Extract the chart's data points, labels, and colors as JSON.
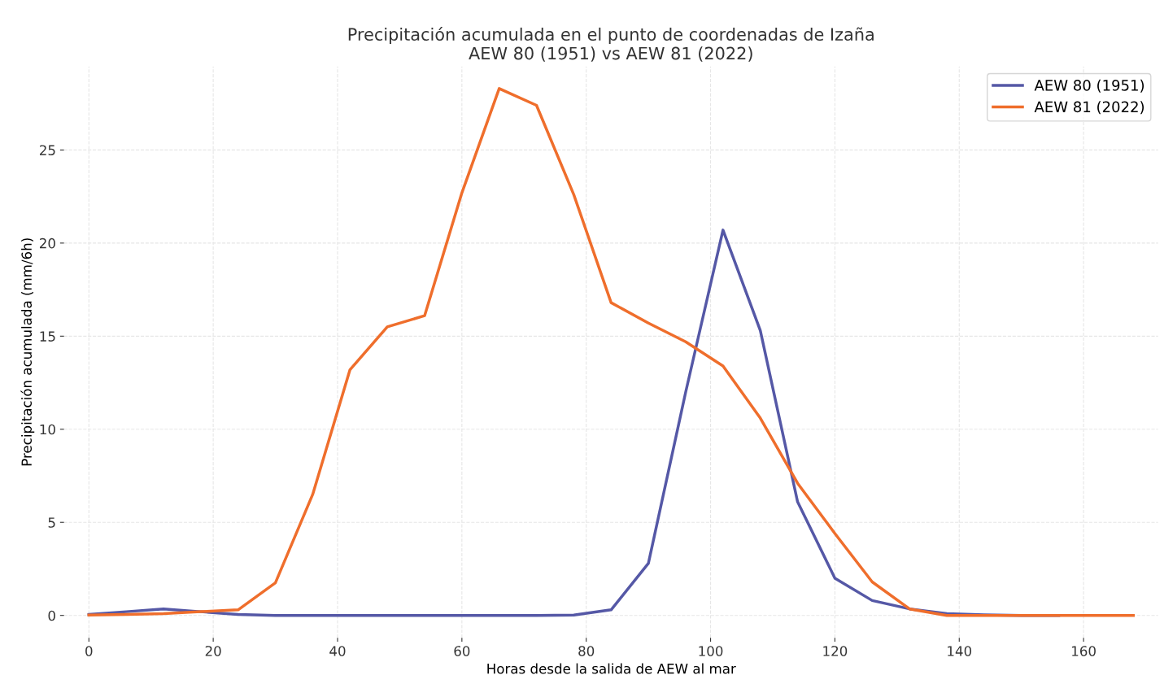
{
  "chart_data": {
    "type": "line",
    "title": "Precipitación acumulada en el punto de coordenadas de Izaña\nAEW 80 (1951) vs AEW 81 (2022)",
    "xlabel": "Horas desde la salida de AEW al mar",
    "ylabel": "Precipitación acumulada (mm/6h)",
    "x": [
      0,
      6,
      12,
      18,
      24,
      30,
      36,
      42,
      48,
      54,
      60,
      66,
      72,
      78,
      84,
      90,
      96,
      102,
      108,
      114,
      120,
      126,
      132,
      138,
      144,
      150,
      156,
      162,
      168
    ],
    "series": [
      {
        "name": "AEW 80 (1951)",
        "color": "#5558a6",
        "values": [
          0.05,
          0.2,
          0.35,
          0.2,
          0.05,
          0,
          0,
          0,
          0,
          0,
          0,
          0,
          0,
          0.02,
          0.3,
          2.8,
          12,
          20.7,
          15.3,
          6.1,
          2.0,
          0.8,
          0.35,
          0.1,
          0.03,
          0,
          0,
          null,
          null
        ]
      },
      {
        "name": "AEW 81 (2022)",
        "color": "#ef6e2c",
        "values": [
          0.02,
          0.05,
          0.1,
          0.2,
          0.3,
          1.75,
          6.5,
          13.2,
          15.5,
          16.1,
          22.7,
          28.3,
          27.4,
          22.6,
          16.8,
          15.7,
          14.7,
          13.4,
          10.6,
          7.1,
          4.4,
          1.8,
          0.35,
          0,
          0,
          0,
          0,
          0,
          0
        ]
      }
    ],
    "xlim": [
      -4,
      172
    ],
    "ylim": [
      -1.2,
      29.5
    ],
    "xticks": [
      0,
      20,
      40,
      60,
      80,
      100,
      120,
      140,
      160
    ],
    "yticks": [
      0,
      5,
      10,
      15,
      20,
      25
    ],
    "grid": true,
    "legend": "top right",
    "line_style": "solid",
    "marker": "none"
  }
}
